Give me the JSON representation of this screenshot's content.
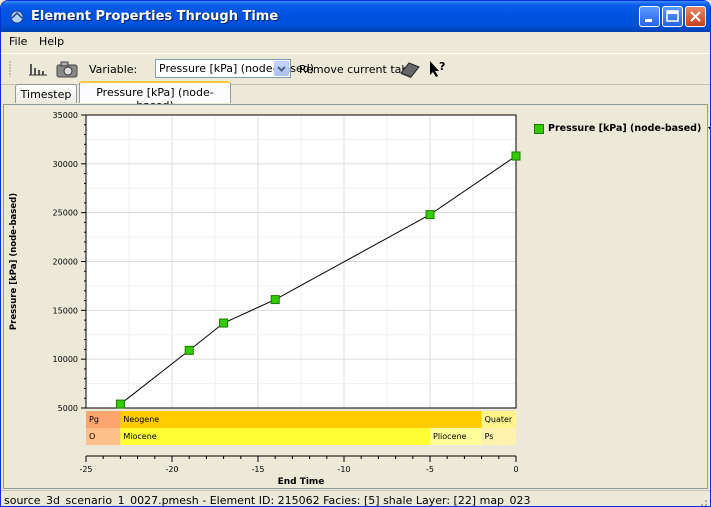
{
  "window": {
    "title": "Element Properties Through Time"
  },
  "menu": {
    "items": [
      "File",
      "Help"
    ]
  },
  "toolbar": {
    "variable_label": "Variable:",
    "variable_value": "Pressure [kPa] (node-based)",
    "remove_tab_label": "Remove current tab",
    "icons": [
      "bar-chart-icon",
      "camera-icon",
      "eraser-icon",
      "help-cursor-icon"
    ]
  },
  "tabs": [
    {
      "label": "Timestep",
      "active": false
    },
    {
      "label": "Pressure [kPa] (node-based)",
      "active": true
    }
  ],
  "legend": {
    "label": "Pressure [kPa] (node-based)"
  },
  "chart_data": {
    "type": "line",
    "title": "",
    "xlabel": "End Time",
    "ylabel": "Pressure [kPa] (node-based)",
    "xlim": [
      -25,
      0
    ],
    "ylim": [
      5000,
      35000
    ],
    "xticks": [
      -25,
      -20,
      -15,
      -10,
      -5,
      0
    ],
    "yticks": [
      5000,
      10000,
      15000,
      20000,
      25000,
      30000,
      35000
    ],
    "grid": true,
    "legend_position": "right",
    "series": [
      {
        "name": "Pressure [kPa] (node-based)",
        "color": "#33cc00",
        "x": [
          -23,
          -19,
          -17,
          -14,
          -5,
          0
        ],
        "y": [
          5400,
          10900,
          13700,
          16100,
          24800,
          30800
        ]
      }
    ],
    "timescale": {
      "row1": [
        {
          "label": "Pg",
          "from": -25,
          "to": -23,
          "color": "#fda46f"
        },
        {
          "label": "Neogene",
          "from": -23,
          "to": -2,
          "color": "#ffcc00"
        },
        {
          "label": "Quater",
          "from": -2,
          "to": 0,
          "color": "#fff38c"
        }
      ],
      "row2": [
        {
          "label": "O",
          "from": -25,
          "to": -23,
          "color": "#fdc08a"
        },
        {
          "label": "Miocene",
          "from": -23,
          "to": -5,
          "color": "#ffff33"
        },
        {
          "label": "Pliocene",
          "from": -5,
          "to": -2,
          "color": "#ffff99"
        },
        {
          "label": "Ps",
          "from": -2,
          "to": 0,
          "color": "#fff2ae"
        }
      ]
    }
  },
  "status": {
    "text": "source_3d_scenario_1_0027.pmesh - Element ID: 215062 Facies: [5] shale   Layer: [22] map_023"
  }
}
